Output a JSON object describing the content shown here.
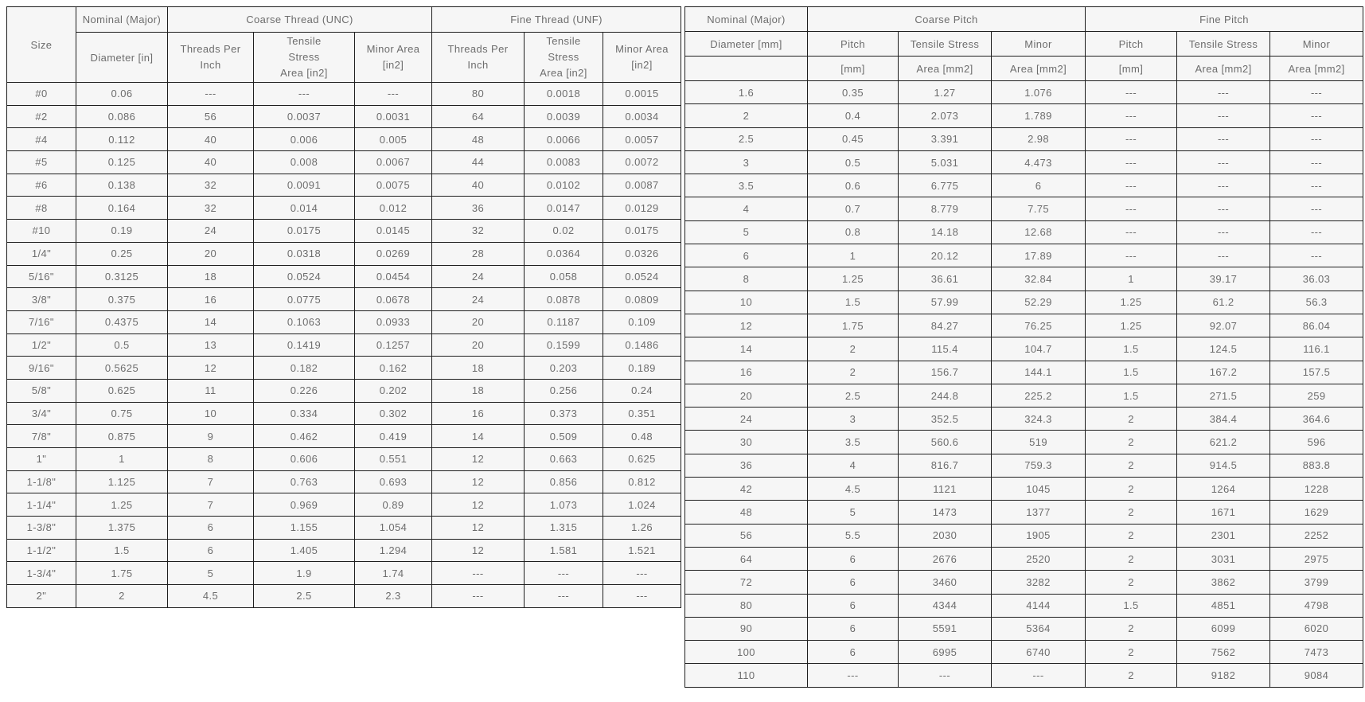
{
  "colors": {
    "page_background": "#ffffff",
    "cell_background": "#f6f6f6",
    "border": "#1f1f1f",
    "text": "#6d6d6d"
  },
  "chart_data": [
    {
      "type": "table",
      "title": "Inch thread sizes (UNC / UNF)",
      "header": {
        "size": "Size",
        "nominal_top": "Nominal (Major)",
        "nominal_bottom": "Diameter [in]",
        "coarse_group": "Coarse Thread (UNC)",
        "fine_group": "Fine Thread (UNF)",
        "tpi": "Threads Per\nInch",
        "tensile": "Tensile\nStress\nArea [in2]",
        "minor": "Minor Area\n[in2]"
      },
      "columns": [
        "Size",
        "Nominal (Major) Diameter [in]",
        "UNC Threads Per Inch",
        "UNC Tensile Stress Area [in2]",
        "UNC Minor Area [in2]",
        "UNF Threads Per Inch",
        "UNF Tensile Stress Area [in2]",
        "UNF Minor Area [in2]"
      ],
      "rows": [
        [
          "#0",
          "0.06",
          "---",
          "---",
          "---",
          "80",
          "0.0018",
          "0.0015"
        ],
        [
          "#2",
          "0.086",
          "56",
          "0.0037",
          "0.0031",
          "64",
          "0.0039",
          "0.0034"
        ],
        [
          "#4",
          "0.112",
          "40",
          "0.006",
          "0.005",
          "48",
          "0.0066",
          "0.0057"
        ],
        [
          "#5",
          "0.125",
          "40",
          "0.008",
          "0.0067",
          "44",
          "0.0083",
          "0.0072"
        ],
        [
          "#6",
          "0.138",
          "32",
          "0.0091",
          "0.0075",
          "40",
          "0.0102",
          "0.0087"
        ],
        [
          "#8",
          "0.164",
          "32",
          "0.014",
          "0.012",
          "36",
          "0.0147",
          "0.0129"
        ],
        [
          "#10",
          "0.19",
          "24",
          "0.0175",
          "0.0145",
          "32",
          "0.02",
          "0.0175"
        ],
        [
          "1/4\"",
          "0.25",
          "20",
          "0.0318",
          "0.0269",
          "28",
          "0.0364",
          "0.0326"
        ],
        [
          "5/16\"",
          "0.3125",
          "18",
          "0.0524",
          "0.0454",
          "24",
          "0.058",
          "0.0524"
        ],
        [
          "3/8\"",
          "0.375",
          "16",
          "0.0775",
          "0.0678",
          "24",
          "0.0878",
          "0.0809"
        ],
        [
          "7/16\"",
          "0.4375",
          "14",
          "0.1063",
          "0.0933",
          "20",
          "0.1187",
          "0.109"
        ],
        [
          "1/2\"",
          "0.5",
          "13",
          "0.1419",
          "0.1257",
          "20",
          "0.1599",
          "0.1486"
        ],
        [
          "9/16\"",
          "0.5625",
          "12",
          "0.182",
          "0.162",
          "18",
          "0.203",
          "0.189"
        ],
        [
          "5/8\"",
          "0.625",
          "11",
          "0.226",
          "0.202",
          "18",
          "0.256",
          "0.24"
        ],
        [
          "3/4\"",
          "0.75",
          "10",
          "0.334",
          "0.302",
          "16",
          "0.373",
          "0.351"
        ],
        [
          "7/8\"",
          "0.875",
          "9",
          "0.462",
          "0.419",
          "14",
          "0.509",
          "0.48"
        ],
        [
          "1\"",
          "1",
          "8",
          "0.606",
          "0.551",
          "12",
          "0.663",
          "0.625"
        ],
        [
          "1-1/8\"",
          "1.125",
          "7",
          "0.763",
          "0.693",
          "12",
          "0.856",
          "0.812"
        ],
        [
          "1-1/4\"",
          "1.25",
          "7",
          "0.969",
          "0.89",
          "12",
          "1.073",
          "1.024"
        ],
        [
          "1-3/8\"",
          "1.375",
          "6",
          "1.155",
          "1.054",
          "12",
          "1.315",
          "1.26"
        ],
        [
          "1-1/2\"",
          "1.5",
          "6",
          "1.405",
          "1.294",
          "12",
          "1.581",
          "1.521"
        ],
        [
          "1-3/4\"",
          "1.75",
          "5",
          "1.9",
          "1.74",
          "---",
          "---",
          "---"
        ],
        [
          "2\"",
          "2",
          "4.5",
          "2.5",
          "2.3",
          "---",
          "---",
          "---"
        ]
      ]
    },
    {
      "type": "table",
      "title": "Metric thread sizes (coarse / fine pitch)",
      "header": {
        "row1": [
          "Nominal (Major)",
          "Coarse Pitch",
          "Fine Pitch"
        ],
        "row2": [
          "Diameter [mm]",
          "Pitch",
          "Tensile Stress",
          "Minor",
          "Pitch",
          "Tensile Stress",
          "Minor"
        ],
        "row3": [
          "",
          "[mm]",
          "Area [mm2]",
          "Area [mm2]",
          "[mm]",
          "Area [mm2]",
          "Area [mm2]"
        ]
      },
      "columns": [
        "Nominal (Major) Diameter [mm]",
        "Coarse Pitch [mm]",
        "Coarse Tensile Stress Area [mm2]",
        "Coarse Minor Area [mm2]",
        "Fine Pitch [mm]",
        "Fine Tensile Stress Area [mm2]",
        "Fine Minor Area [mm2]"
      ],
      "rows": [
        [
          "1.6",
          "0.35",
          "1.27",
          "1.076",
          "---",
          "---",
          "---"
        ],
        [
          "2",
          "0.4",
          "2.073",
          "1.789",
          "---",
          "---",
          "---"
        ],
        [
          "2.5",
          "0.45",
          "3.391",
          "2.98",
          "---",
          "---",
          "---"
        ],
        [
          "3",
          "0.5",
          "5.031",
          "4.473",
          "---",
          "---",
          "---"
        ],
        [
          "3.5",
          "0.6",
          "6.775",
          "6",
          "---",
          "---",
          "---"
        ],
        [
          "4",
          "0.7",
          "8.779",
          "7.75",
          "---",
          "---",
          "---"
        ],
        [
          "5",
          "0.8",
          "14.18",
          "12.68",
          "---",
          "---",
          "---"
        ],
        [
          "6",
          "1",
          "20.12",
          "17.89",
          "---",
          "---",
          "---"
        ],
        [
          "8",
          "1.25",
          "36.61",
          "32.84",
          "1",
          "39.17",
          "36.03"
        ],
        [
          "10",
          "1.5",
          "57.99",
          "52.29",
          "1.25",
          "61.2",
          "56.3"
        ],
        [
          "12",
          "1.75",
          "84.27",
          "76.25",
          "1.25",
          "92.07",
          "86.04"
        ],
        [
          "14",
          "2",
          "115.4",
          "104.7",
          "1.5",
          "124.5",
          "116.1"
        ],
        [
          "16",
          "2",
          "156.7",
          "144.1",
          "1.5",
          "167.2",
          "157.5"
        ],
        [
          "20",
          "2.5",
          "244.8",
          "225.2",
          "1.5",
          "271.5",
          "259"
        ],
        [
          "24",
          "3",
          "352.5",
          "324.3",
          "2",
          "384.4",
          "364.6"
        ],
        [
          "30",
          "3.5",
          "560.6",
          "519",
          "2",
          "621.2",
          "596"
        ],
        [
          "36",
          "4",
          "816.7",
          "759.3",
          "2",
          "914.5",
          "883.8"
        ],
        [
          "42",
          "4.5",
          "1121",
          "1045",
          "2",
          "1264",
          "1228"
        ],
        [
          "48",
          "5",
          "1473",
          "1377",
          "2",
          "1671",
          "1629"
        ],
        [
          "56",
          "5.5",
          "2030",
          "1905",
          "2",
          "2301",
          "2252"
        ],
        [
          "64",
          "6",
          "2676",
          "2520",
          "2",
          "3031",
          "2975"
        ],
        [
          "72",
          "6",
          "3460",
          "3282",
          "2",
          "3862",
          "3799"
        ],
        [
          "80",
          "6",
          "4344",
          "4144",
          "1.5",
          "4851",
          "4798"
        ],
        [
          "90",
          "6",
          "5591",
          "5364",
          "2",
          "6099",
          "6020"
        ],
        [
          "100",
          "6",
          "6995",
          "6740",
          "2",
          "7562",
          "7473"
        ],
        [
          "110",
          "---",
          "---",
          "---",
          "2",
          "9182",
          "9084"
        ]
      ]
    }
  ]
}
